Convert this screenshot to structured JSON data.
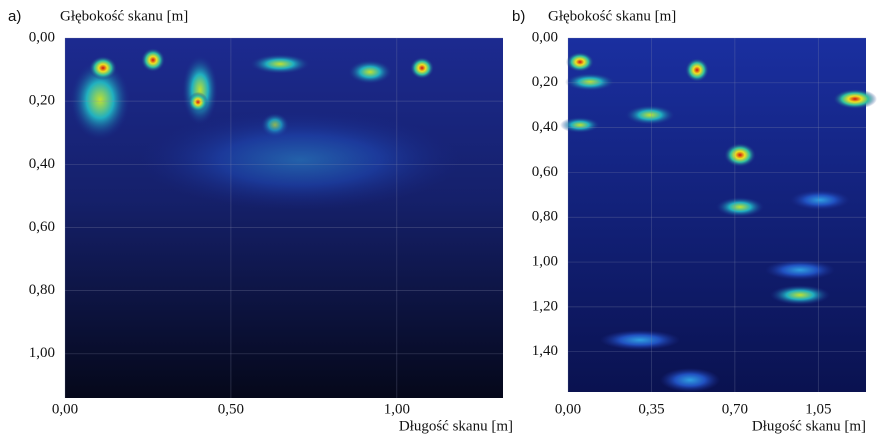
{
  "chart_data": [
    {
      "type": "heatmap",
      "panel_label": "a)",
      "ylabel": "Głębokość skanu [m]",
      "xlabel": "Długość skanu [m]",
      "xlim": [
        0,
        1.32
      ],
      "ylim": [
        0,
        1.14
      ],
      "y_inverted": true,
      "grid": true,
      "xticks": [
        {
          "value": 0,
          "label": "0,00"
        },
        {
          "value": 0.5,
          "label": "0,50"
        },
        {
          "value": 1.0,
          "label": "1,00"
        }
      ],
      "yticks": [
        {
          "value": 0,
          "label": "0,00"
        },
        {
          "value": 0.2,
          "label": "0,20"
        },
        {
          "value": 0.4,
          "label": "0,40"
        },
        {
          "value": 0.6,
          "label": "0,60"
        },
        {
          "value": 0.8,
          "label": "0,80"
        },
        {
          "value": 1.0,
          "label": "1,00"
        }
      ]
    },
    {
      "type": "heatmap",
      "panel_label": "b)",
      "ylabel": "Głębokość skanu [m]",
      "xlabel": "Długość skanu [m]",
      "xlim": [
        0,
        1.25
      ],
      "ylim": [
        0,
        1.58
      ],
      "y_inverted": true,
      "grid": true,
      "xticks": [
        {
          "value": 0,
          "label": "0,00"
        },
        {
          "value": 0.35,
          "label": "0,35"
        },
        {
          "value": 0.7,
          "label": "0,70"
        },
        {
          "value": 1.05,
          "label": "1,05"
        }
      ],
      "yticks": [
        {
          "value": 0,
          "label": "0,00"
        },
        {
          "value": 0.2,
          "label": "0,20"
        },
        {
          "value": 0.4,
          "label": "0,40"
        },
        {
          "value": 0.6,
          "label": "0,60"
        },
        {
          "value": 0.8,
          "label": "0,80"
        },
        {
          "value": 1.0,
          "label": "1,00"
        },
        {
          "value": 1.2,
          "label": "1,20"
        },
        {
          "value": 1.4,
          "label": "1,40"
        }
      ]
    }
  ]
}
